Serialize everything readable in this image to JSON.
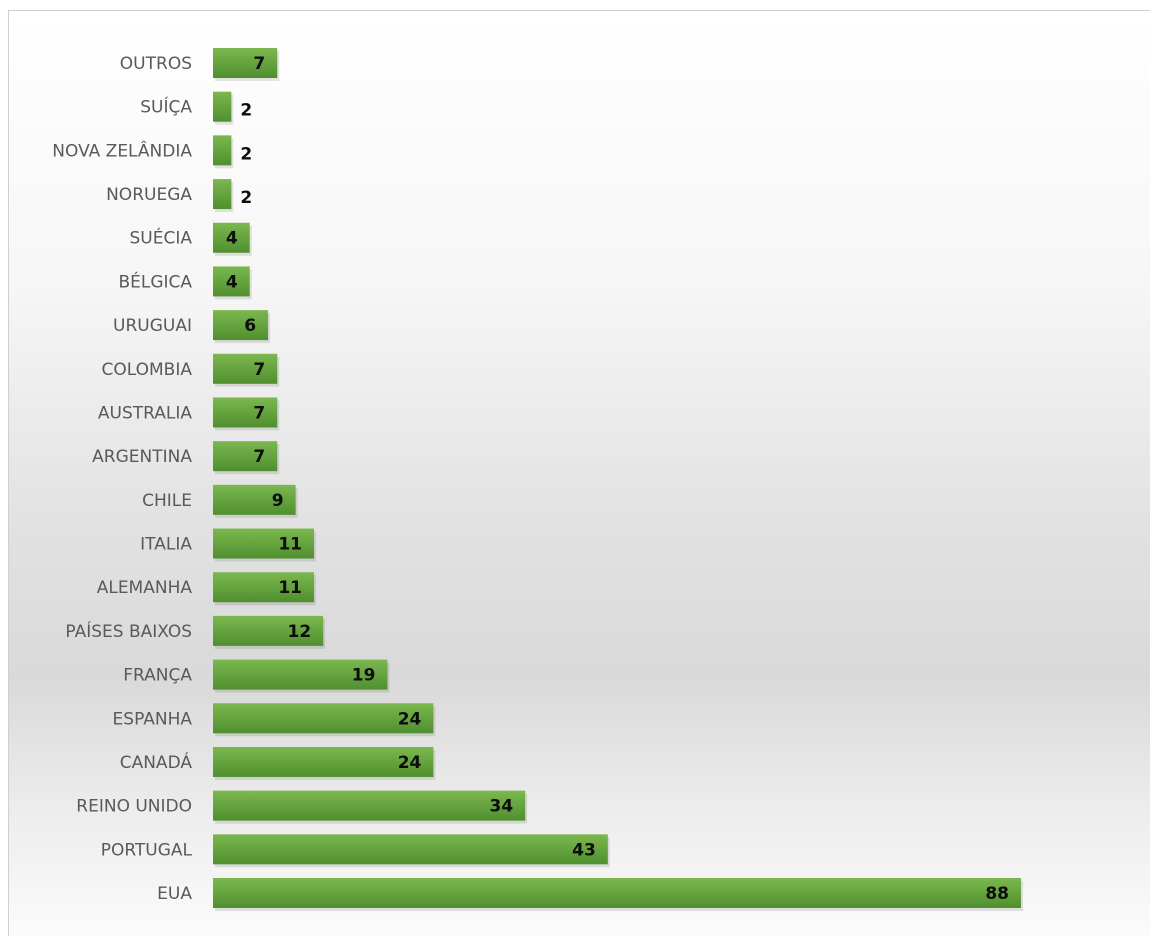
{
  "chart_data": {
    "type": "bar",
    "orientation": "horizontal",
    "categories": [
      "OUTROS",
      "SUÍÇA",
      "NOVA ZELÂNDIA",
      "NORUEGA",
      "SUÉCIA",
      "BÉLGICA",
      "URUGUAI",
      "COLOMBIA",
      "AUSTRALIA",
      "ARGENTINA",
      "CHILE",
      "ITALIA",
      "ALEMANHA",
      "PAÍSES BAIXOS",
      "FRANÇA",
      "ESPANHA",
      "CANADÁ",
      "REINO UNIDO",
      "PORTUGAL",
      "EUA"
    ],
    "values": [
      7,
      2,
      2,
      2,
      4,
      4,
      6,
      7,
      7,
      7,
      9,
      11,
      11,
      12,
      19,
      24,
      24,
      34,
      43,
      88
    ],
    "title": "",
    "xlabel": "",
    "ylabel": "",
    "xlim": [
      0,
      88
    ],
    "grid": false,
    "legend": "none",
    "data_labels": true,
    "colors": {
      "bar_light": "#7cb84f",
      "bar_dark": "#4f8f2e",
      "category_text": "#595959",
      "value_text": "#0d0d0d"
    }
  }
}
